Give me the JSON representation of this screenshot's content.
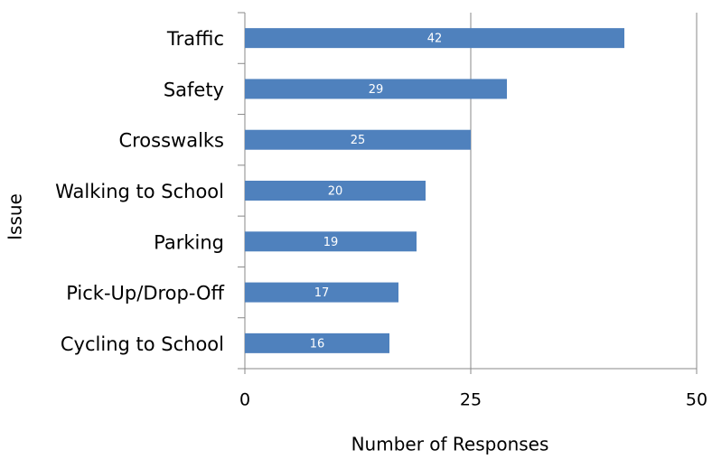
{
  "chart_data": {
    "type": "bar",
    "orientation": "horizontal",
    "categories": [
      "Traffic",
      "Safety",
      "Crosswalks",
      "Walking to School",
      "Parking",
      "Pick-Up/Drop-Off",
      "Cycling to School"
    ],
    "values": [
      42,
      29,
      25,
      20,
      19,
      17,
      16
    ],
    "color": "#4f81bd",
    "xlabel": "Number of Responses",
    "ylabel": "Issue",
    "xlim": [
      0,
      50
    ],
    "xticks": [
      0,
      25,
      50
    ],
    "grid": true
  }
}
